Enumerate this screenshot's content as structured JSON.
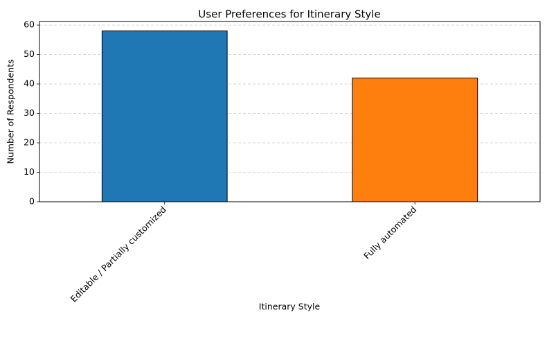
{
  "chart_data": {
    "type": "bar",
    "title": "User Preferences for Itinerary Style",
    "x_label": "Itinerary Style",
    "y_label": "Number of Respondents",
    "categories": [
      "Editable / Partially customized",
      "Fully automated"
    ],
    "values": [
      58,
      42
    ],
    "colors": [
      "#1f77b4",
      "#ff7f0e"
    ],
    "ylim": [
      0,
      61.2
    ],
    "yticks": [
      0,
      10,
      20,
      30,
      40,
      50,
      60
    ],
    "grid": true
  }
}
